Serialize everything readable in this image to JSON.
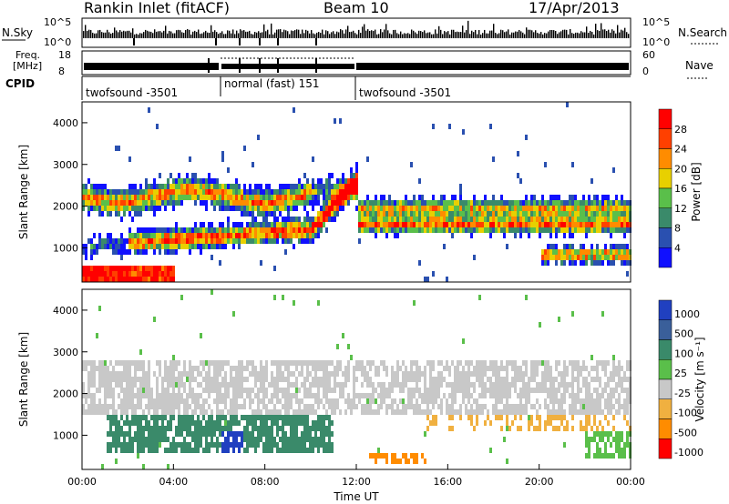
{
  "header": {
    "title": "Rankin Inlet (fitACF)",
    "beam": "Beam 10",
    "date": "17/Apr/2013"
  },
  "top_panels": {
    "nsky_label": "N.Sky",
    "nsky_ticks": [
      "10^5",
      "10^0"
    ],
    "nsearch_label": "N.Search",
    "nsearch_ticks": [
      "10^5",
      "10^0"
    ],
    "freq_label_1": "Freq.",
    "freq_label_2": "[MHz]",
    "freq_ticks": [
      "18",
      "8"
    ],
    "nave_label": "Nave",
    "nave_ticks": [
      "60",
      "0"
    ],
    "cpid_label": "CPID",
    "cpid_segments": [
      {
        "label": "twofsound -3501",
        "start": 0,
        "end": 6
      },
      {
        "label": "normal (fast) 151",
        "start": 6,
        "end": 12
      },
      {
        "label": "twofsound -3501",
        "start": 12,
        "end": 24
      }
    ]
  },
  "chart_data": [
    {
      "type": "heatmap",
      "name": "power",
      "ylabel": "Slant Range [km]",
      "yticks": [
        1000,
        2000,
        3000,
        4000
      ],
      "ylim": [
        180,
        4500
      ],
      "xlim": [
        0,
        24
      ],
      "colorbar_label": "Power [dB]",
      "colorbar_ticks": [
        "4",
        "8",
        "12",
        "16",
        "20",
        "24",
        "28"
      ],
      "colors": [
        "#1010ff",
        "#2a50b0",
        "#3a8a6a",
        "#5abf4a",
        "#e8d000",
        "#ff8c00",
        "#ff4000",
        "#ff0000"
      ]
    },
    {
      "type": "heatmap",
      "name": "velocity",
      "ylabel": "Slant Range [km]",
      "yticks": [
        1000,
        2000,
        3000,
        4000
      ],
      "ylim": [
        180,
        4500
      ],
      "xlim": [
        0,
        24
      ],
      "xlabel": "Time UT",
      "xticks": [
        "00:00",
        "04:00",
        "08:00",
        "12:00",
        "16:00",
        "20:00",
        "00:00"
      ],
      "colorbar_label": "Velocity [m s⁻¹]",
      "colorbar_ticks": [
        "1000",
        "500",
        "100",
        "25",
        "-25",
        "-100",
        "-500",
        "-1000"
      ],
      "colors": [
        "#2040c0",
        "#3a5f9a",
        "#3a8a6a",
        "#5abf4a",
        "#c8c8c8",
        "#f0b040",
        "#ff8c00",
        "#ff0000"
      ]
    }
  ]
}
